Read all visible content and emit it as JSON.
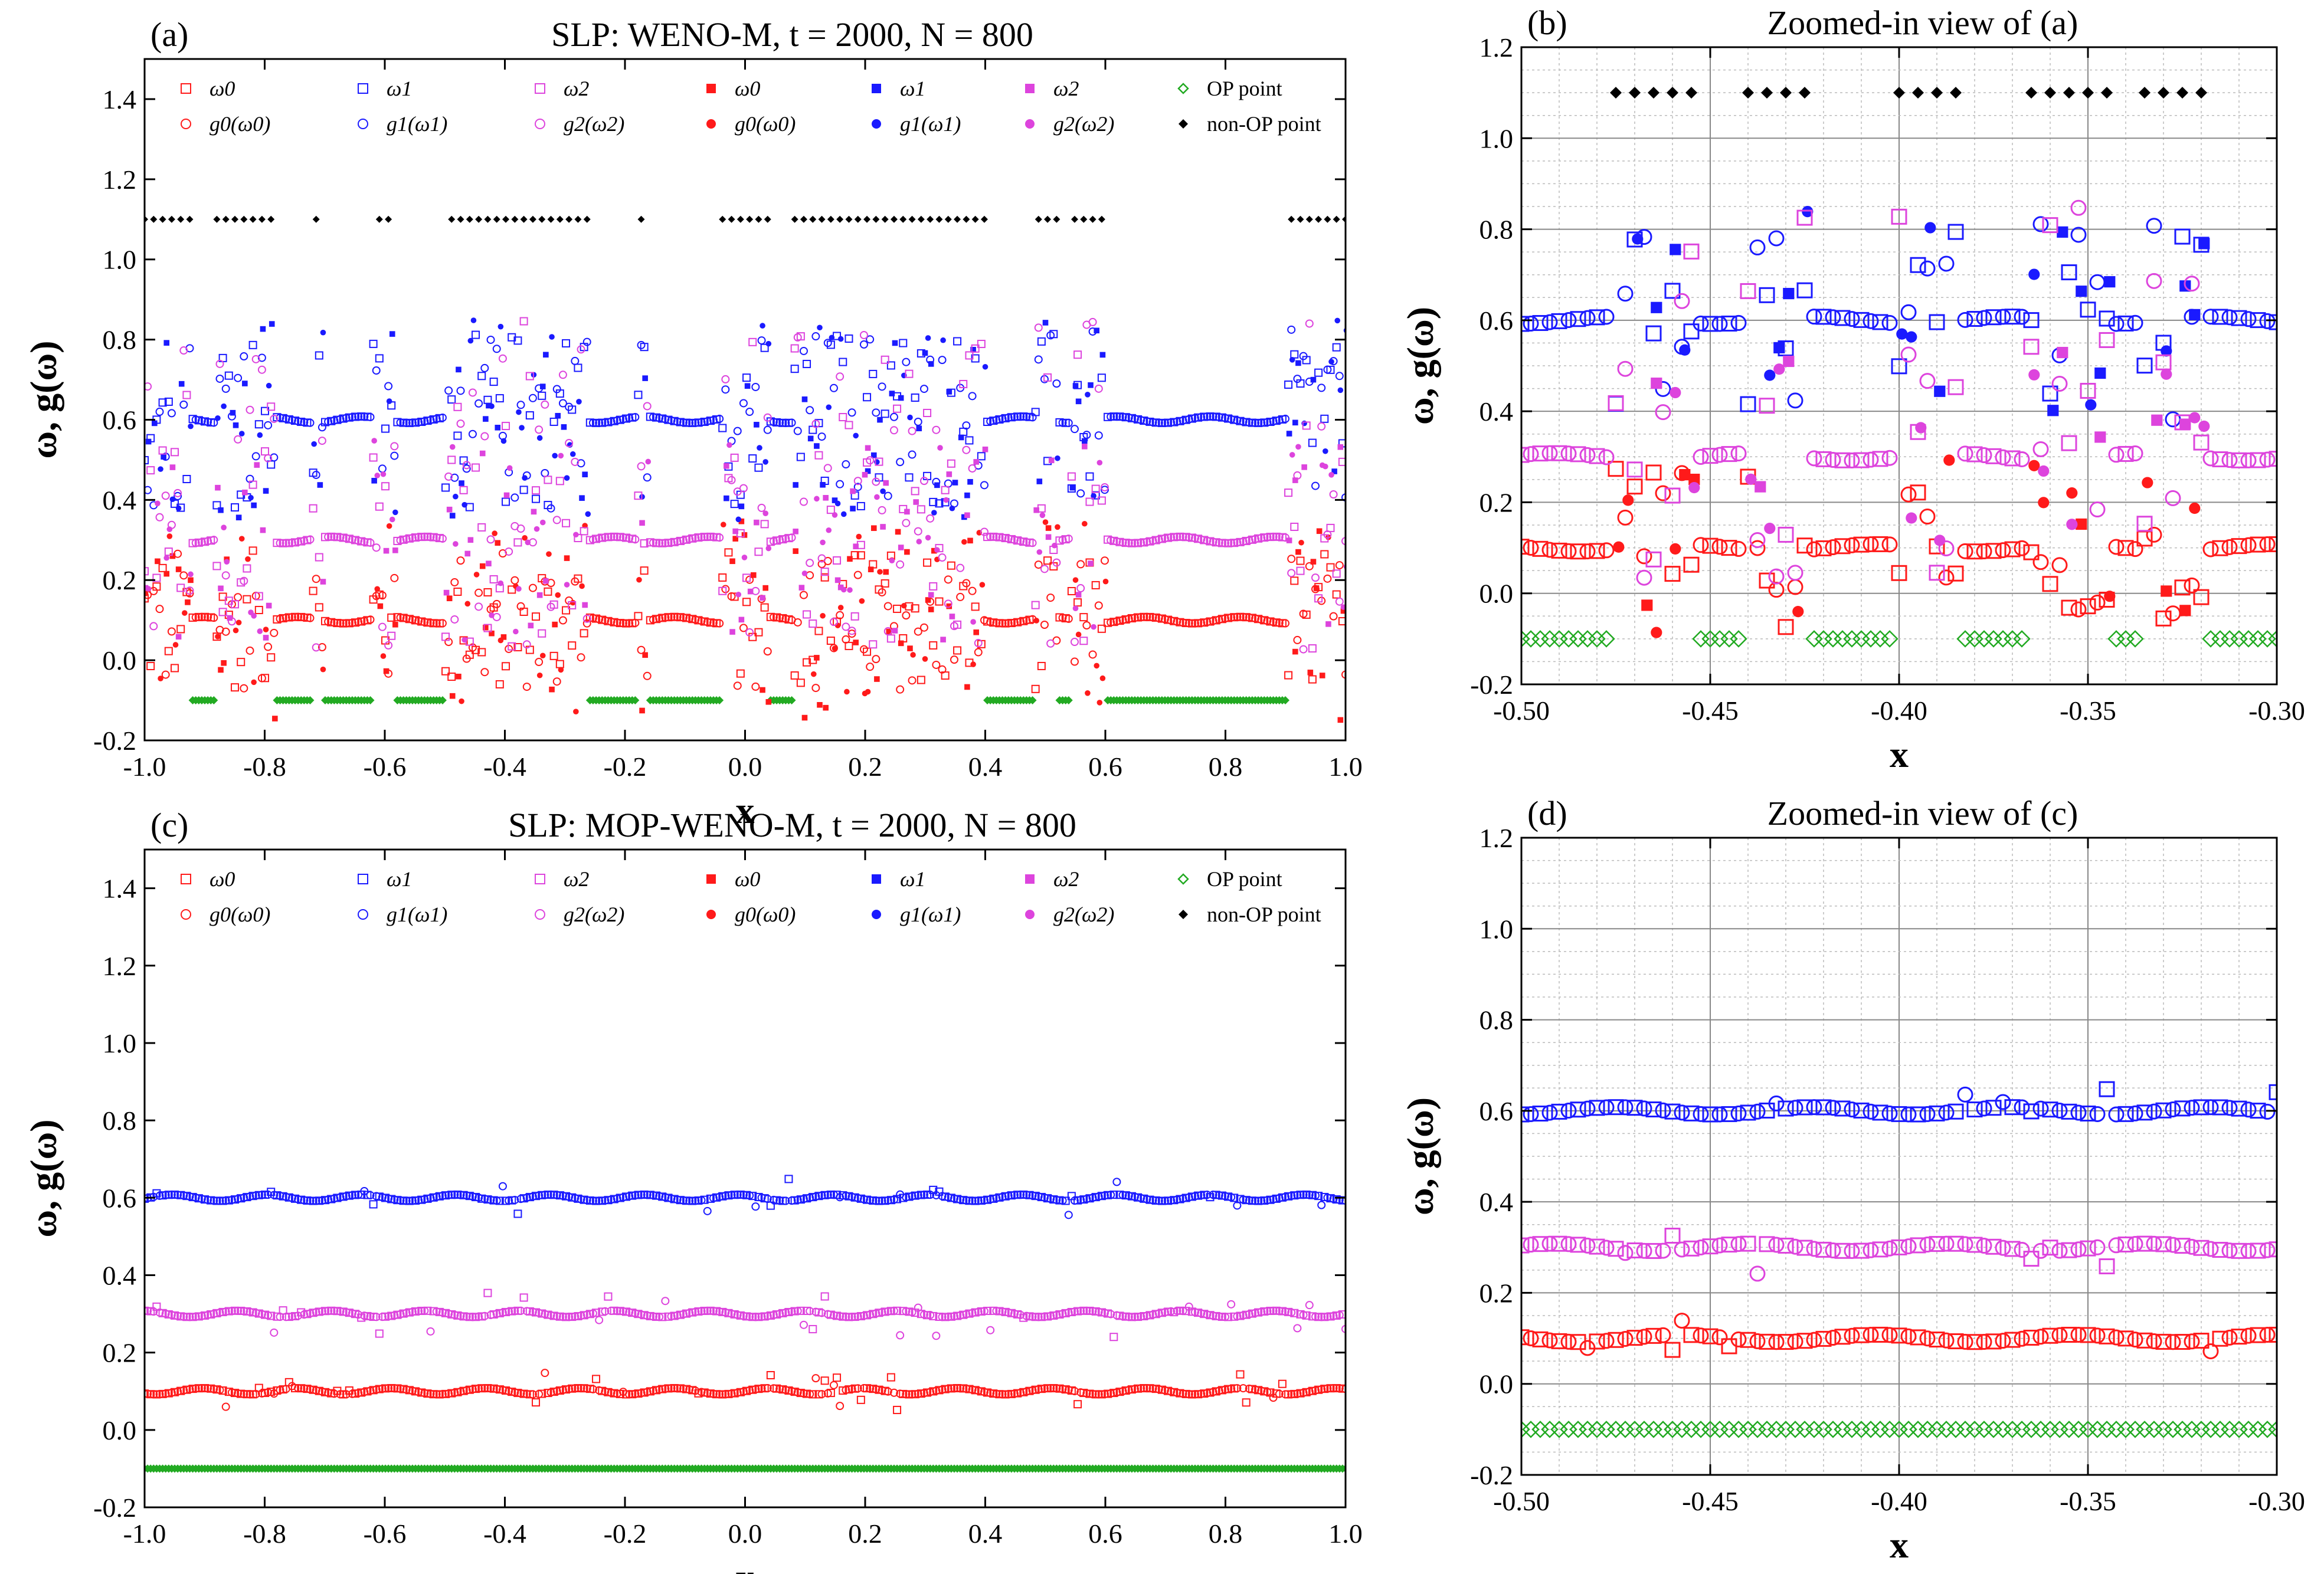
{
  "figure": {
    "series_legend": {
      "omega0": "ω0",
      "omega1": "ω1",
      "omega2": "ω2",
      "g0": "g0(ω0)",
      "g1": "g1(ω1)",
      "g2": "g2(ω2)",
      "op": "OP point",
      "nonop": "non-OP point"
    },
    "colors": {
      "red": "#ff1a1a",
      "blue": "#1a1aff",
      "magenta": "#dd44dd",
      "green": "#22aa22",
      "black": "#000000"
    },
    "ylabel": "ω, g(ω)",
    "xlabel": "x"
  },
  "chart_data": [
    {
      "id": "a",
      "type": "scatter",
      "panel_label": "(a)",
      "title": "SLP: WENO-M, t = 2000, N = 800",
      "xlabel": "x",
      "ylabel": "ω, g(ω)",
      "xlim": [
        -1.0,
        1.0
      ],
      "ylim": [
        -0.2,
        1.5
      ],
      "xticks": [
        "-1.0",
        "-0.8",
        "-0.6",
        "-0.4",
        "-0.2",
        "0.0",
        "0.2",
        "0.4",
        "0.6",
        "0.8",
        "1.0"
      ],
      "yticks": [
        "-0.2",
        "0.0",
        "0.2",
        "0.4",
        "0.6",
        "0.8",
        "1.0",
        "1.2",
        "1.4"
      ],
      "grid": false,
      "legend": "top",
      "levels": {
        "omega0": 0.1,
        "omega1": 0.6,
        "omega2": 0.3,
        "op": -0.1,
        "nonop": 1.1
      },
      "nonop_regions": [
        [
          -1.0,
          -0.92
        ],
        [
          -0.88,
          -0.78
        ],
        [
          -0.72,
          -0.7
        ],
        [
          -0.62,
          -0.58
        ],
        [
          -0.5,
          -0.26
        ],
        [
          -0.18,
          -0.16
        ],
        [
          -0.04,
          0.04
        ],
        [
          0.08,
          0.4
        ],
        [
          0.48,
          0.52
        ],
        [
          0.54,
          0.6
        ],
        [
          0.9,
          1.0
        ]
      ]
    },
    {
      "id": "b",
      "type": "scatter",
      "panel_label": "(b)",
      "title": "Zoomed-in view of (a)",
      "xlabel": "x",
      "ylabel": "ω, g(ω)",
      "xlim": [
        -0.5,
        -0.3
      ],
      "ylim": [
        -0.2,
        1.2
      ],
      "xticks": [
        "-0.50",
        "-0.45",
        "-0.40",
        "-0.35",
        "-0.30"
      ],
      "yticks": [
        "-0.2",
        "0.0",
        "0.2",
        "0.4",
        "0.6",
        "0.8",
        "1.0",
        "1.2"
      ],
      "grid": true,
      "levels": {
        "omega0": 0.1,
        "omega1": 0.6,
        "omega2": 0.3,
        "op": -0.1,
        "nonop": 1.1
      },
      "nonop_regions": [
        [
          -0.475,
          -0.455
        ],
        [
          -0.44,
          -0.425
        ],
        [
          -0.4,
          -0.385
        ],
        [
          -0.365,
          -0.345
        ],
        [
          -0.335,
          -0.318
        ]
      ]
    },
    {
      "id": "c",
      "type": "scatter",
      "panel_label": "(c)",
      "title": "SLP: MOP-WENO-M, t = 2000, N = 800",
      "xlabel": "x",
      "ylabel": "ω, g(ω)",
      "xlim": [
        -1.0,
        1.0
      ],
      "ylim": [
        -0.2,
        1.5
      ],
      "xticks": [
        "-1.0",
        "-0.8",
        "-0.6",
        "-0.4",
        "-0.2",
        "0.0",
        "0.2",
        "0.4",
        "0.6",
        "0.8",
        "1.0"
      ],
      "yticks": [
        "-0.2",
        "0.0",
        "0.2",
        "0.4",
        "0.6",
        "0.8",
        "1.0",
        "1.2",
        "1.4"
      ],
      "grid": false,
      "legend": "top",
      "levels": {
        "omega0": 0.1,
        "omega1": 0.6,
        "omega2": 0.3,
        "op": -0.1
      },
      "nonop_regions": []
    },
    {
      "id": "d",
      "type": "scatter",
      "panel_label": "(d)",
      "title": "Zoomed-in view of (c)",
      "xlabel": "x",
      "ylabel": "ω, g(ω)",
      "xlim": [
        -0.5,
        -0.3
      ],
      "ylim": [
        -0.2,
        1.2
      ],
      "xticks": [
        "-0.50",
        "-0.45",
        "-0.40",
        "-0.35",
        "-0.30"
      ],
      "yticks": [
        "-0.2",
        "0.0",
        "0.2",
        "0.4",
        "0.6",
        "0.8",
        "1.0",
        "1.2"
      ],
      "grid": true,
      "levels": {
        "omega0": 0.1,
        "omega1": 0.6,
        "omega2": 0.3,
        "op": -0.1
      },
      "nonop_regions": []
    }
  ]
}
